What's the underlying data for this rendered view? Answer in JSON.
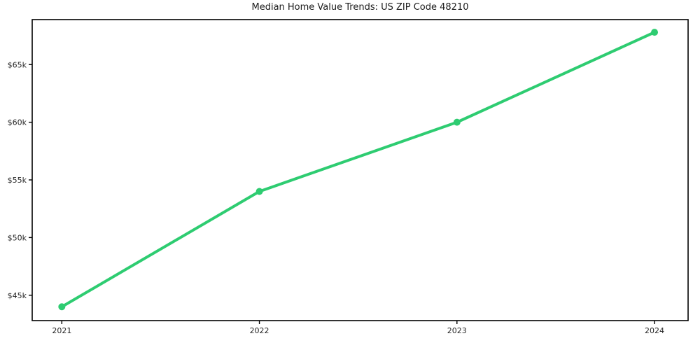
{
  "page": {
    "title": "Median Home Value Trends: US ZIP Code 48210"
  },
  "chart_data": {
    "type": "line",
    "title": "Median Home Value Trends: US ZIP Code 48210",
    "xlabel": "",
    "ylabel": "",
    "x": [
      2021,
      2022,
      2023,
      2024
    ],
    "xtick_labels": [
      "2021",
      "2022",
      "2023",
      "2024"
    ],
    "series": [
      {
        "name": "Median Home Value",
        "values": [
          44000,
          54000,
          60000,
          67800
        ]
      }
    ],
    "ytick_values": [
      45000,
      50000,
      55000,
      60000,
      65000
    ],
    "ytick_labels": [
      "$45k",
      "$50k",
      "$55k",
      "$60k",
      "$65k"
    ],
    "xlim": [
      2020.85,
      2024.17
    ],
    "ylim": [
      42800,
      68900
    ],
    "grid": false,
    "legend_position": "none",
    "line_color": "#2ecc71",
    "marker": "circle",
    "marker_color": "#2ecc71",
    "background_color": "#ffffff",
    "spine_color": "#000000",
    "text_color": "#262626"
  }
}
